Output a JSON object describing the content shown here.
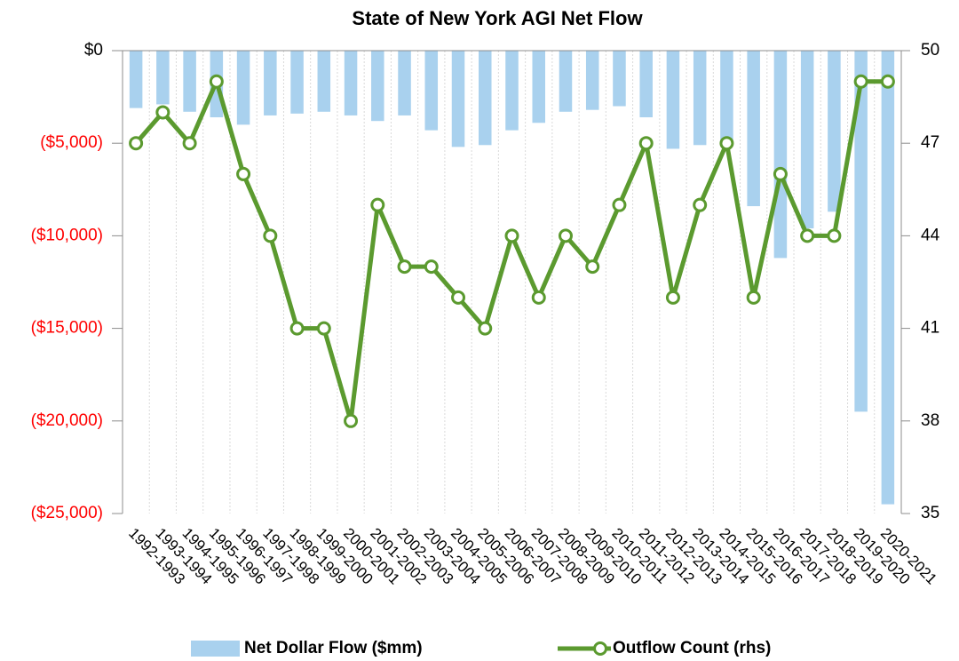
{
  "chart_data": {
    "type": "bar_line",
    "title": "State of New York AGI Net Flow",
    "categories": [
      "1992-1993",
      "1993-1994",
      "1994-1995",
      "1995-1996",
      "1996-1997",
      "1997-1998",
      "1998-1999",
      "1999-2000",
      "2000-2001",
      "2001-2002",
      "2002-2003",
      "2003-2004",
      "2004-2005",
      "2005-2006",
      "2006-2007",
      "2007-2008",
      "2008-2009",
      "2009-2010",
      "2010-2011",
      "2011-2012",
      "2012-2013",
      "2013-2014",
      "2014-2015",
      "2015-2016",
      "2016-2017",
      "2017-2018",
      "2018-2019",
      "2019-2020",
      "2020-2021"
    ],
    "series": [
      {
        "name": "Net Dollar Flow ($mm)",
        "type": "bar",
        "color": "#a9d1ee",
        "axis": "y",
        "values": [
          -3100,
          -2900,
          -3300,
          -3600,
          -4000,
          -3500,
          -3400,
          -3300,
          -3500,
          -3800,
          -3500,
          -4300,
          -5200,
          -5100,
          -4300,
          -3900,
          -3300,
          -3200,
          -3000,
          -3600,
          -5300,
          -5100,
          -4900,
          -8400,
          -11200,
          -9600,
          -8700,
          -19500,
          -24500
        ]
      },
      {
        "name": "Outflow Count (rhs)",
        "type": "line",
        "color": "#5b9a2f",
        "axis": "y2",
        "values": [
          47,
          48,
          47,
          49,
          46,
          44,
          41,
          41,
          38,
          45,
          43,
          43,
          42,
          41,
          44,
          42,
          44,
          43,
          45,
          47,
          42,
          45,
          47,
          42,
          46,
          44,
          44,
          49,
          49
        ]
      }
    ],
    "ylim": [
      -25000,
      0
    ],
    "yticks": [
      {
        "value": 0,
        "label": "$0"
      },
      {
        "value": -5000,
        "label": "($5,000)"
      },
      {
        "value": -10000,
        "label": "($10,000)"
      },
      {
        "value": -15000,
        "label": "($15,000)"
      },
      {
        "value": -20000,
        "label": "($20,000)"
      },
      {
        "value": -25000,
        "label": "($25,000)"
      }
    ],
    "negative_tick_color": "#ff0000",
    "y2lim": [
      35,
      50
    ],
    "y2ticks": [
      35,
      38,
      41,
      44,
      47,
      50
    ],
    "grid": "vertical",
    "legend": "bottom"
  }
}
